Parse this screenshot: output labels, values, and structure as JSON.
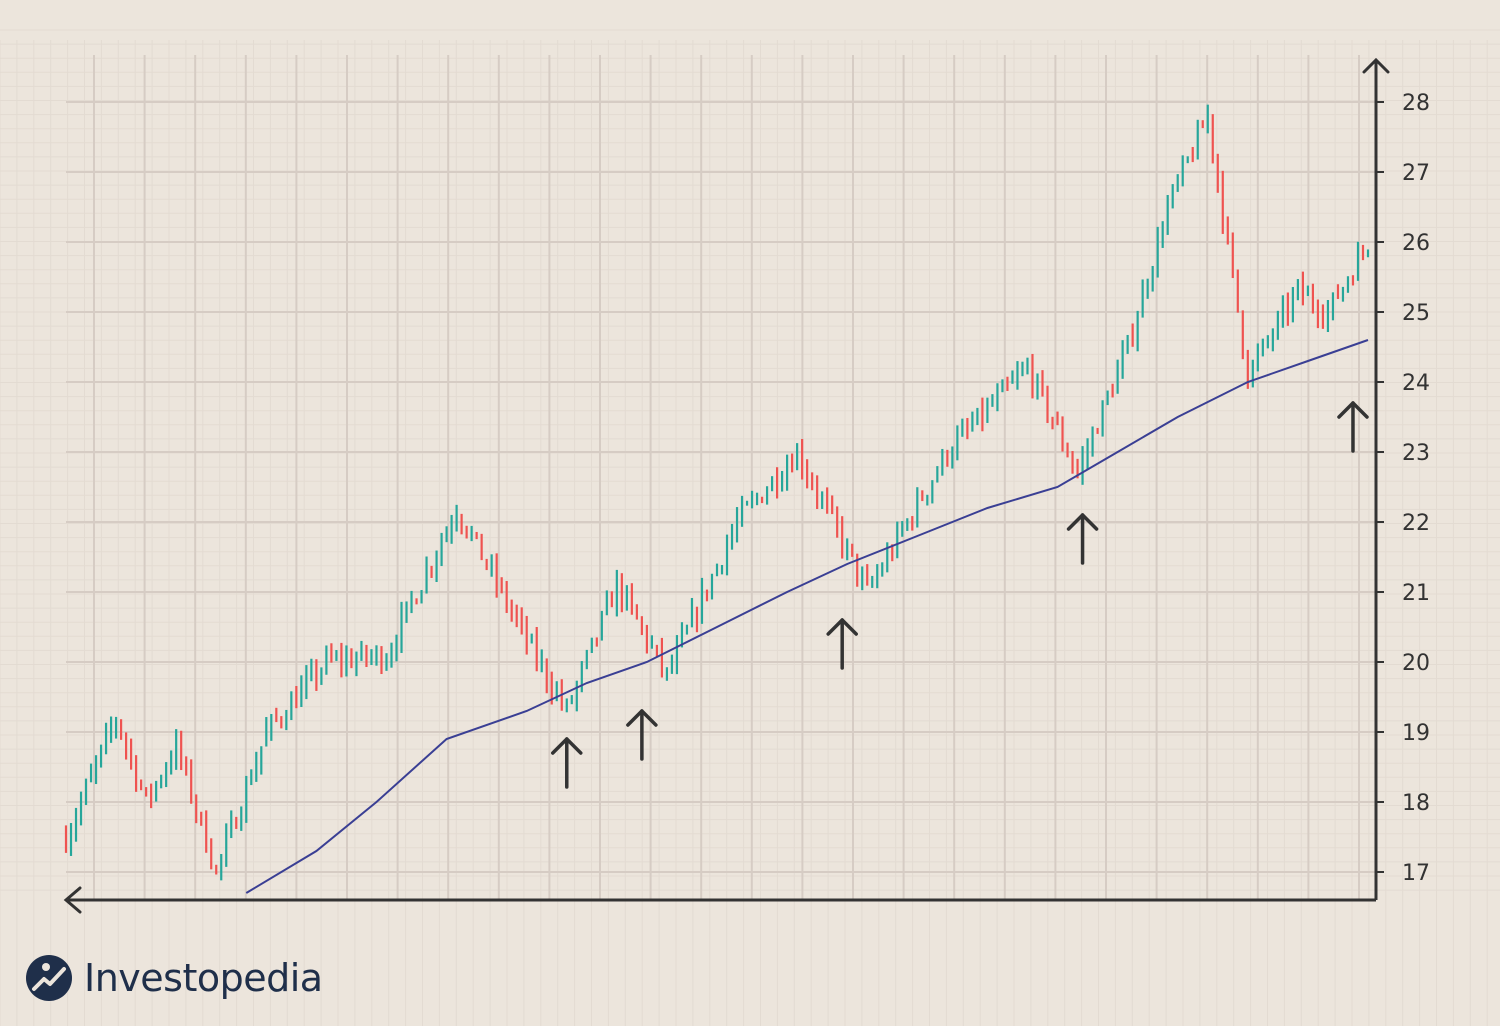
{
  "brand": {
    "name": "Investopedia",
    "logo_icon": "investopedia-logo-icon"
  },
  "colors": {
    "background": "#ece5dc",
    "grid_major": "#d6ccc4",
    "grid_minor": "#e3dbd2",
    "up": "#26a69a",
    "down": "#ef5350",
    "moving_average": "#3a3f94",
    "axis": "#333333",
    "arrow": "#333333"
  },
  "chart_data": {
    "type": "line",
    "title": "",
    "xlabel": "",
    "ylabel": "",
    "y_axis_position": "right",
    "ylim": [
      16.6,
      28.6
    ],
    "x_range": [
      0,
      260
    ],
    "yticks": [
      17,
      18,
      19,
      20,
      21,
      22,
      23,
      24,
      25,
      26,
      27,
      28
    ],
    "grid": true,
    "series": [
      {
        "kind": "price_bars",
        "x": [
          0,
          10,
          16,
          22,
          30,
          40,
          52,
          64,
          78,
          92,
          100,
          110,
          120,
          134,
          146,
          160,
          176,
          192,
          202,
          212,
          220,
          228,
          236,
          246,
          252,
          260
        ],
        "values": [
          17.5,
          19.2,
          18.0,
          18.8,
          17.0,
          19.0,
          20.0,
          20.1,
          22.2,
          20.3,
          19.3,
          21.1,
          19.8,
          22.0,
          23.0,
          21.0,
          23.0,
          24.2,
          22.7,
          24.5,
          26.5,
          27.8,
          24.1,
          25.3,
          25.0,
          26.0
        ]
      },
      {
        "kind": "moving_average",
        "x": [
          36,
          50,
          62,
          76,
          92,
          104,
          116,
          130,
          144,
          156,
          170,
          184,
          198,
          210,
          222,
          236,
          248,
          260
        ],
        "values": [
          16.7,
          17.3,
          18.0,
          18.9,
          19.3,
          19.7,
          20.0,
          20.5,
          21.0,
          21.4,
          21.8,
          22.2,
          22.5,
          23.0,
          23.5,
          24.0,
          24.3,
          24.6
        ]
      }
    ],
    "annotations": [
      {
        "type": "up-arrow",
        "x": 100,
        "y": 19.3
      },
      {
        "type": "up-arrow",
        "x": 115,
        "y": 19.7
      },
      {
        "type": "up-arrow",
        "x": 155,
        "y": 21.0
      },
      {
        "type": "up-arrow",
        "x": 203,
        "y": 22.5
      },
      {
        "type": "up-arrow",
        "x": 257,
        "y": 24.1
      }
    ]
  }
}
